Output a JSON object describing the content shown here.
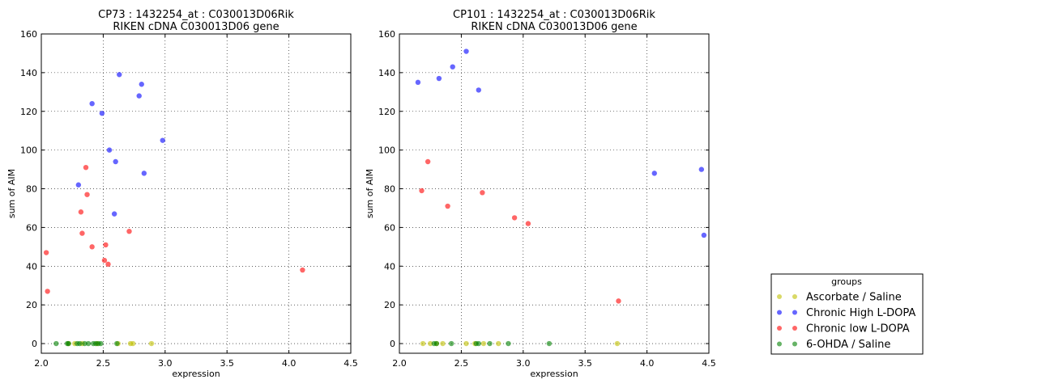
{
  "chart_data": [
    {
      "type": "scatter",
      "title": "CP73 : 1432254_at : C030013D06Rik",
      "subtitle": "RIKEN cDNA C030013D06 gene",
      "xlabel": "expression",
      "ylabel": "sum of AIM",
      "xlim": [
        2.0,
        4.5
      ],
      "ylim": [
        -5,
        160
      ],
      "xticks": [
        "2.0",
        "2.5",
        "3.0",
        "3.5",
        "4.0",
        "4.5"
      ],
      "yticks": [
        "0",
        "20",
        "40",
        "60",
        "80",
        "100",
        "120",
        "140",
        "160"
      ],
      "grid": true,
      "series": [
        {
          "name": "Ascorbate / Saline",
          "color": "#bfbf00",
          "points": [
            [
              2.22,
              0
            ],
            [
              2.27,
              0
            ],
            [
              2.33,
              0
            ],
            [
              2.45,
              0
            ],
            [
              2.62,
              0
            ],
            [
              2.72,
              0
            ],
            [
              2.74,
              0
            ],
            [
              2.89,
              0
            ]
          ]
        },
        {
          "name": "Chronic High L-DOPA",
          "color": "#0000ff",
          "points": [
            [
              2.63,
              139
            ],
            [
              2.81,
              134
            ],
            [
              2.41,
              124
            ],
            [
              2.79,
              128
            ],
            [
              2.49,
              119
            ],
            [
              2.98,
              105
            ],
            [
              2.55,
              100
            ],
            [
              2.6,
              94
            ],
            [
              2.83,
              88
            ],
            [
              2.3,
              82
            ],
            [
              2.59,
              67
            ]
          ]
        },
        {
          "name": "Chronic low L-DOPA",
          "color": "#ff0000",
          "points": [
            [
              2.36,
              91
            ],
            [
              2.37,
              77
            ],
            [
              2.32,
              68
            ],
            [
              2.33,
              57
            ],
            [
              2.41,
              50
            ],
            [
              2.52,
              51
            ],
            [
              2.51,
              43
            ],
            [
              2.54,
              41
            ],
            [
              2.71,
              58
            ],
            [
              2.04,
              47
            ],
            [
              2.05,
              27
            ],
            [
              4.11,
              38
            ]
          ]
        },
        {
          "name": "6-OHDA / Saline",
          "color": "#008000",
          "points": [
            [
              2.12,
              0
            ],
            [
              2.21,
              0
            ],
            [
              2.22,
              0
            ],
            [
              2.29,
              0
            ],
            [
              2.31,
              0
            ],
            [
              2.35,
              0
            ],
            [
              2.38,
              0
            ],
            [
              2.42,
              0
            ],
            [
              2.44,
              0
            ],
            [
              2.46,
              0
            ],
            [
              2.48,
              0
            ],
            [
              2.61,
              0
            ]
          ]
        }
      ]
    },
    {
      "type": "scatter",
      "title": "CP101 : 1432254_at : C030013D06Rik",
      "subtitle": "RIKEN cDNA C030013D06 gene",
      "xlabel": "expression",
      "ylabel": "sum of AIM",
      "xlim": [
        2.0,
        4.5
      ],
      "ylim": [
        -5,
        160
      ],
      "xticks": [
        "2.0",
        "2.5",
        "3.0",
        "3.5",
        "4.0",
        "4.5"
      ],
      "yticks": [
        "0",
        "20",
        "40",
        "60",
        "80",
        "100",
        "120",
        "140",
        "160"
      ],
      "grid": true,
      "series": [
        {
          "name": "Ascorbate / Saline",
          "color": "#bfbf00",
          "points": [
            [
              2.19,
              0
            ],
            [
              2.25,
              0
            ],
            [
              2.3,
              0
            ],
            [
              2.35,
              0
            ],
            [
              2.54,
              0
            ],
            [
              2.61,
              0
            ],
            [
              2.68,
              0
            ],
            [
              2.8,
              0
            ],
            [
              3.76,
              0
            ]
          ]
        },
        {
          "name": "Chronic High L-DOPA",
          "color": "#0000ff",
          "points": [
            [
              2.15,
              135
            ],
            [
              2.32,
              137
            ],
            [
              2.43,
              143
            ],
            [
              2.54,
              151
            ],
            [
              2.64,
              131
            ],
            [
              4.06,
              88
            ],
            [
              4.44,
              90
            ],
            [
              4.46,
              56
            ]
          ]
        },
        {
          "name": "Chronic low L-DOPA",
          "color": "#ff0000",
          "points": [
            [
              2.18,
              79
            ],
            [
              2.23,
              94
            ],
            [
              2.39,
              71
            ],
            [
              2.67,
              78
            ],
            [
              2.93,
              65
            ],
            [
              3.04,
              62
            ],
            [
              3.77,
              22
            ]
          ]
        },
        {
          "name": "6-OHDA / Saline",
          "color": "#008000",
          "points": [
            [
              2.28,
              0
            ],
            [
              2.3,
              0
            ],
            [
              2.42,
              0
            ],
            [
              2.62,
              0
            ],
            [
              2.64,
              0
            ],
            [
              2.73,
              0
            ],
            [
              2.88,
              0
            ],
            [
              3.21,
              0
            ]
          ]
        }
      ]
    }
  ],
  "legend": {
    "title": "groups",
    "placement": "bottom-right",
    "entries": [
      {
        "label": "Ascorbate / Saline",
        "color": "#bfbf00"
      },
      {
        "label": "Chronic High L-DOPA",
        "color": "#0000ff"
      },
      {
        "label": "Chronic low L-DOPA",
        "color": "#ff0000"
      },
      {
        "label": "6-OHDA / Saline",
        "color": "#008000"
      }
    ]
  }
}
